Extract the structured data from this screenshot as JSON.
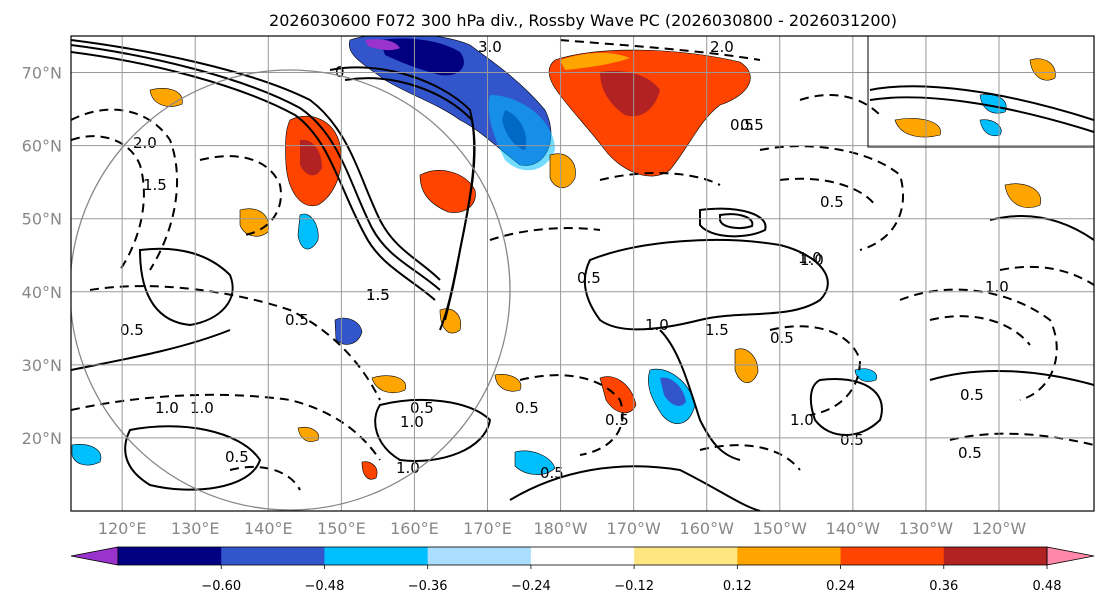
{
  "chart_data": {
    "type": "map-contour",
    "title": "2026030600 F072 300 hPa div., Rossby Wave PC (2026030800 - 2026031200)",
    "x_ticks": [
      "120°E",
      "130°E",
      "140°E",
      "150°E",
      "160°E",
      "170°E",
      "180°W",
      "170°W",
      "160°W",
      "150°W",
      "140°W",
      "130°W",
      "120°W"
    ],
    "x_tick_lons": [
      120,
      130,
      140,
      150,
      160,
      170,
      180,
      190,
      200,
      210,
      220,
      230,
      240
    ],
    "y_ticks": [
      "70°N",
      "60°N",
      "50°N",
      "40°N",
      "30°N",
      "20°N"
    ],
    "y_tick_lats": [
      70,
      60,
      50,
      40,
      30,
      20
    ],
    "lon_range": [
      113,
      253
    ],
    "lat_range": [
      10,
      75
    ],
    "colorbar": {
      "levels": [
        -0.6,
        -0.48,
        -0.36,
        -0.24,
        -0.12,
        0.12,
        0.24,
        0.36,
        0.48,
        0.6
      ],
      "labels": [
        "−0.60",
        "−0.48",
        "−0.36",
        "−0.24",
        "−0.12",
        "0.12",
        "0.24",
        "0.36",
        "0.48",
        "0.60"
      ],
      "colors": [
        "#9933cc",
        "#000080",
        "#3355cc",
        "#00bfff",
        "#aaddff",
        "#ffffff",
        "#ffe680",
        "#ffa500",
        "#ff4400",
        "#b22222",
        "#ff88aa"
      ],
      "extend": "both"
    },
    "contour_labels": [
      "3.0",
      "2.0",
      "1.5",
      "1.0",
      "0.5",
      "0",
      "0.5",
      "1.0",
      "1.5",
      "0.5",
      "2.0",
      "1.0",
      "0.5",
      "0.5",
      "1.0",
      "0.5",
      "1.0",
      "0.5",
      "0.5",
      "1.0",
      "0.5",
      "1.5",
      "0.5",
      "1.0",
      "0.5",
      "0.5",
      "1.0",
      "1.5",
      "0.5",
      "0.5",
      "0.5",
      "1.0"
    ]
  }
}
